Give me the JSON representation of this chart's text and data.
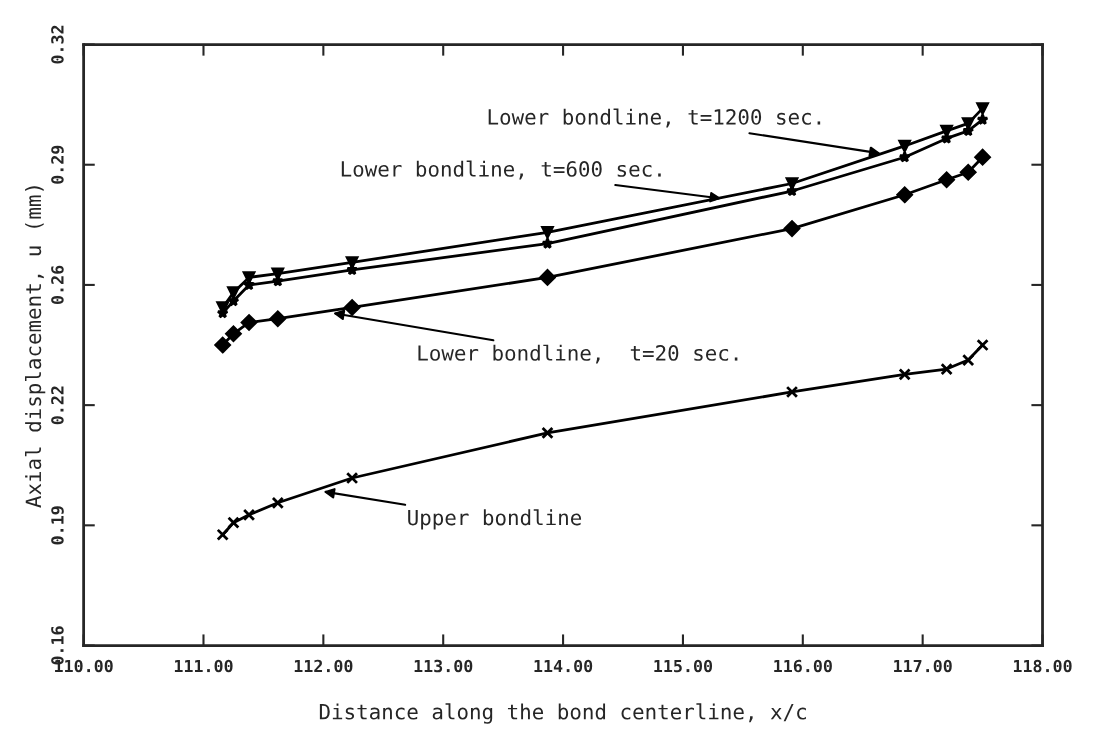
{
  "chart_data": {
    "type": "line",
    "xlabel": "Distance along the bond centerline, x/c",
    "ylabel": "Axial displacement, u (mm)",
    "xlim": [
      110,
      118
    ],
    "xticks": [
      {
        "value": 110,
        "label": "110.00"
      },
      {
        "value": 111,
        "label": "111.00"
      },
      {
        "value": 112,
        "label": "112.00"
      },
      {
        "value": 113,
        "label": "113.00"
      },
      {
        "value": 114,
        "label": "114.00"
      },
      {
        "value": 115,
        "label": "115.00"
      },
      {
        "value": 116,
        "label": "116.00"
      },
      {
        "value": 117,
        "label": "117.00"
      },
      {
        "value": 118,
        "label": "118.00"
      }
    ],
    "ylim": [
      0.16,
      0.32
    ],
    "yticks": [
      0.16,
      {
        "value": 0.192,
        "label": "0.19"
      },
      {
        "value": 0.224,
        "label": "0.22"
      },
      {
        "value": 0.256,
        "label": "0.26"
      },
      {
        "value": 0.288,
        "label": "0.29"
      },
      0.32
    ],
    "x": [
      111.16,
      111.25,
      111.38,
      111.62,
      112.24,
      113.87,
      115.91,
      116.85,
      117.2,
      117.38,
      117.5
    ],
    "grid": false,
    "legend": false,
    "series": [
      {
        "color": "#000000",
        "marker": "triangle",
        "values": [
          0.25,
          0.254,
          0.258,
          0.259,
          0.262,
          0.27,
          0.283,
          0.293,
          0.297,
          0.299,
          0.303
        ]
      },
      {
        "color": "#000000",
        "marker": "star",
        "values": [
          0.2485,
          0.2517,
          0.256,
          0.257,
          0.26,
          0.267,
          0.281,
          0.29,
          0.295,
          0.297,
          0.3
        ]
      },
      {
        "color": "#000000",
        "marker": "diamond",
        "values": [
          0.24,
          0.243,
          0.246,
          0.247,
          0.25,
          0.258,
          0.271,
          0.28,
          0.284,
          0.286,
          0.29
        ]
      },
      {
        "color": "#000000",
        "marker": "cross",
        "values": [
          0.1895,
          0.1927,
          0.1948,
          0.198,
          0.2046,
          0.2166,
          0.2275,
          0.2322,
          0.2336,
          0.236,
          0.24
        ]
      }
    ],
    "annotations": [
      {
        "text": "Lower bondline, t=1200 sec.",
        "x": 116.65,
        "y": 0.291
      },
      {
        "text": "Lower bondline, t=600 sec.",
        "x": 115.32,
        "y": 0.279
      },
      {
        "text": "Lower bondline,  t=20 sec.",
        "x": 112.08,
        "y": 0.2485
      },
      {
        "text": "Upper bondline",
        "x": 112.0,
        "y": 0.201
      }
    ]
  }
}
